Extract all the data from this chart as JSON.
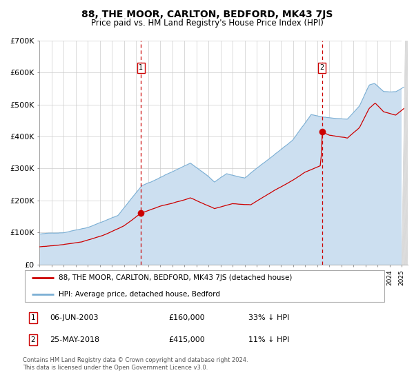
{
  "title": "88, THE MOOR, CARLTON, BEDFORD, MK43 7JS",
  "subtitle": "Price paid vs. HM Land Registry's House Price Index (HPI)",
  "legend_line1": "88, THE MOOR, CARLTON, BEDFORD, MK43 7JS (detached house)",
  "legend_line2": "HPI: Average price, detached house, Bedford",
  "annotation1_text_col1": "06-JUN-2003",
  "annotation1_text_col2": "£160,000",
  "annotation1_text_col3": "33% ↓ HPI",
  "annotation2_text_col1": "25-MAY-2018",
  "annotation2_text_col2": "£415,000",
  "annotation2_text_col3": "11% ↓ HPI",
  "annotation1_price": 160000,
  "annotation2_price": 415000,
  "annotation1_year": 2003.417,
  "annotation2_year": 2018.396,
  "hpi_fill_color": "#ccdff0",
  "hpi_line_color": "#7bafd4",
  "price_color": "#cc0000",
  "vline_color": "#cc0000",
  "grid_color": "#cccccc",
  "ylim": [
    0,
    700000
  ],
  "ytick_vals": [
    0,
    100000,
    200000,
    300000,
    400000,
    500000,
    600000,
    700000
  ],
  "ytick_labels": [
    "£0",
    "£100K",
    "£200K",
    "£300K",
    "£400K",
    "£500K",
    "£600K",
    "£700K"
  ],
  "xmin": 1995.0,
  "xmax": 2025.5,
  "footer_line1": "Contains HM Land Registry data © Crown copyright and database right 2024.",
  "footer_line2": "This data is licensed under the Open Government Licence v3.0."
}
